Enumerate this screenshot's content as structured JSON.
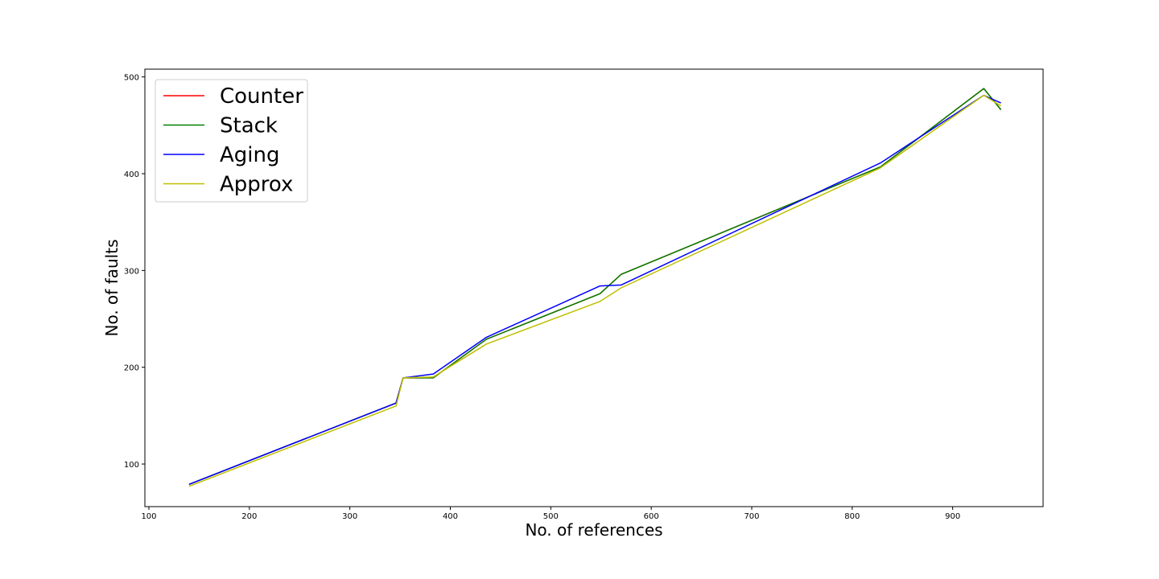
{
  "chart_data": {
    "type": "line",
    "title": "",
    "xlabel": "No. of references",
    "ylabel": "No. of faults",
    "xlim": [
      96,
      990
    ],
    "ylim": [
      56,
      508
    ],
    "xticks": [
      100,
      200,
      300,
      400,
      500,
      600,
      700,
      800,
      900
    ],
    "yticks": [
      100,
      200,
      300,
      400,
      500
    ],
    "grid": false,
    "legend_position": "top-left",
    "x": [
      140,
      346,
      353,
      383,
      436,
      549,
      570,
      828,
      931,
      948
    ],
    "series": [
      {
        "name": "Counter",
        "color": "#ff0000",
        "values": [
          79,
          163,
          189,
          189,
          229,
          276,
          296,
          407,
          488,
          466
        ]
      },
      {
        "name": "Stack",
        "color": "#008000",
        "values": [
          79,
          163,
          189,
          189,
          229,
          276,
          296,
          407,
          488,
          466
        ]
      },
      {
        "name": "Aging",
        "color": "#0000ff",
        "values": [
          79,
          163,
          189,
          193,
          231,
          284,
          285,
          411,
          481,
          473
        ]
      },
      {
        "name": "Approx",
        "color": "#bfbf00",
        "values": [
          77,
          160,
          189,
          190,
          224,
          268,
          282,
          406,
          481,
          470
        ]
      }
    ]
  }
}
